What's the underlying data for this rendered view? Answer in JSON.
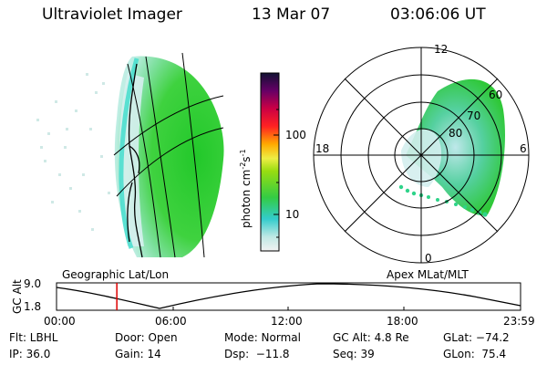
{
  "header": {
    "instrument": "Ultraviolet Imager",
    "date": "13 Mar 07",
    "time": "03:06:06 UT"
  },
  "colorbar": {
    "unit_label": "photon cm",
    "unit_exp1": "-2",
    "unit_mid": "s",
    "unit_exp2": "-1",
    "ticks": [
      "100",
      "10"
    ]
  },
  "polar": {
    "mlt_labels": [
      "12",
      "18",
      "6",
      "0"
    ],
    "lat_labels": [
      "60",
      "70",
      "80"
    ]
  },
  "timeline": {
    "left_label": "Geographic Lat/Lon",
    "right_label": "Apex MLat/MLT",
    "axis_title": "GC Alt",
    "y_max": "9.0",
    "y_min": "1.8",
    "x_ticks": [
      "00:00",
      "06:00",
      "12:00",
      "18:00",
      "23:59"
    ],
    "current_time_fraction": 0.13
  },
  "info": {
    "flt": "Flt: LBHL",
    "ip": "IP: 36.0",
    "door": "Door: Open",
    "gain": "Gain: 14",
    "mode": "Mode: Normal",
    "dsp": "Dsp:  −11.8",
    "gcalt": "GC Alt: 4.8 Re",
    "seq": "Seq: 39",
    "glat": "GLat: −74.2",
    "glon": "GLon:  75.4"
  },
  "colors": {
    "aurora_green": "#33cc33",
    "aurora_cyan": "#44ddcc",
    "marker_red": "#dd0000"
  }
}
